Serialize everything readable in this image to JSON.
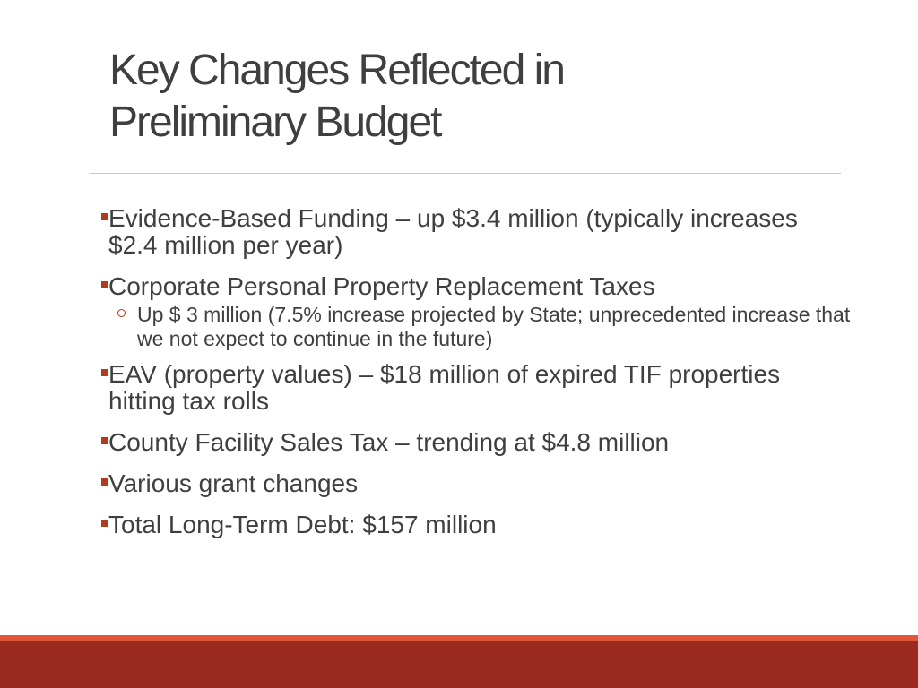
{
  "slide": {
    "title_line1": "Key Changes Reflected in",
    "title_line2": "Preliminary Budget"
  },
  "bullets": [
    {
      "text": "Evidence-Based Funding – up $3.4 million (typically increases $2.4 million per year)"
    },
    {
      "text": "Corporate Personal Property Replacement Taxes",
      "sub": [
        {
          "text": "Up $ 3 million (7.5% increase projected by State; unprecedented increase that we not expect to continue in the future)"
        }
      ]
    },
    {
      "text": "EAV (property values) – $18 million of expired TIF properties hitting tax rolls"
    },
    {
      "text": "County Facility Sales Tax – trending at $4.8 million"
    },
    {
      "text": "Various grant changes"
    },
    {
      "text": "Total Long-Term Debt: $157 million"
    }
  ],
  "theme": {
    "accent": "#b13a1f",
    "footer_band": "#9b2a1e",
    "footer_line": "#e0573a",
    "text": "#3f3f3f"
  }
}
